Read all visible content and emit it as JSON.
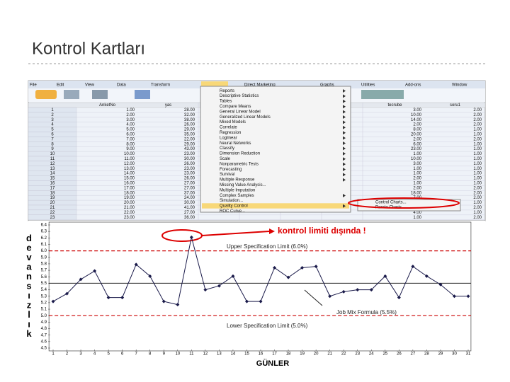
{
  "slide_title": "Kontrol Kartları",
  "spss": {
    "menu": [
      "File",
      "Edit",
      "View",
      "Data",
      "Transform",
      "Analyze",
      "Direct Marketing",
      "Graphs",
      "Utilities",
      "Add-ons",
      "Window"
    ],
    "table": {
      "columns": [
        "AnketNo",
        "yas",
        "tecrube",
        "soru1"
      ],
      "rows": [
        [
          "1",
          "1.00",
          "28.00",
          "3.00",
          "2.00"
        ],
        [
          "2",
          "2.00",
          "32.00",
          "10.00",
          "2.00"
        ],
        [
          "3",
          "3.00",
          "38.00",
          "14.00",
          "2.00"
        ],
        [
          "4",
          "4.00",
          "26.00",
          "2.00",
          "2.00"
        ],
        [
          "5",
          "5.00",
          "29.00",
          "8.00",
          "1.00"
        ],
        [
          "6",
          "6.00",
          "35.00",
          "20.00",
          "1.00"
        ],
        [
          "7",
          "7.00",
          "22.00",
          "2.00",
          "2.00"
        ],
        [
          "8",
          "8.00",
          "29.00",
          "6.00",
          "1.00"
        ],
        [
          "9",
          "9.00",
          "43.00",
          "23.00",
          "1.00"
        ],
        [
          "10",
          "10.00",
          "23.00",
          "1.00",
          "1.00"
        ],
        [
          "11",
          "11.00",
          "30.00",
          "10.00",
          "1.00"
        ],
        [
          "12",
          "12.00",
          "26.00",
          "3.00",
          "1.00"
        ],
        [
          "13",
          "13.00",
          "23.00",
          "1.00",
          "1.00"
        ],
        [
          "14",
          "14.00",
          "23.00",
          "1.00",
          "1.00"
        ],
        [
          "15",
          "15.00",
          "26.00",
          "2.00",
          "1.00"
        ],
        [
          "16",
          "16.00",
          "27.00",
          "1.00",
          "1.00"
        ],
        [
          "17",
          "17.00",
          "27.00",
          "2.00",
          "2.00"
        ],
        [
          "18",
          "18.00",
          "37.00",
          "18.00",
          "2.00"
        ],
        [
          "19",
          "19.00",
          "24.00",
          "7.00",
          "2.00"
        ],
        [
          "20",
          "20.00",
          "30.00",
          "3.00",
          "1.00"
        ],
        [
          "21",
          "21.00",
          "41.00",
          "2.00",
          "2.00"
        ],
        [
          "22",
          "22.00",
          "27.00",
          "4.00",
          "1.00"
        ],
        [
          "23",
          "23.00",
          "36.00",
          "1.00",
          "2.00"
        ]
      ]
    },
    "analyze_menu": [
      "Reports",
      "Descriptive Statistics",
      "Tables",
      "Compare Means",
      "General Linear Model",
      "Generalized Linear Models",
      "Mixed Models",
      "Correlate",
      "Regression",
      "Loglinear",
      "Neural Networks",
      "Classify",
      "Dimension Reduction",
      "Scale",
      "Nonparametric Tests",
      "Forecasting",
      "Survival",
      "Multiple Response",
      "Missing Value Analysis...",
      "Multiple Imputation",
      "Complex Samples",
      "Simulation...",
      "Quality Control",
      "ROC Curve..."
    ],
    "submenu": [
      "Control Charts...",
      "Pareto Charts..."
    ]
  },
  "chart_data": {
    "type": "line",
    "y_label": "devansızlık",
    "x_label": "GÜNLER",
    "annotations": [
      "kontrol limiti dışında !",
      "Upper Specification Limit (6.0%)",
      "Job Mix Formula (5.5%)",
      "Lower Specification Limit (5.0%)"
    ],
    "upper_limit": 6,
    "center": 5.5,
    "lower_limit": 5,
    "x": [
      1,
      2,
      3,
      4,
      5,
      6,
      7,
      8,
      9,
      10,
      11,
      12,
      13,
      14,
      15,
      16,
      17,
      18,
      19,
      20,
      21,
      22,
      23,
      24,
      25,
      26,
      27,
      28,
      29,
      30,
      31
    ],
    "values": [
      5.22,
      5.34,
      5.56,
      5.69,
      5.28,
      5.28,
      5.79,
      5.61,
      5.22,
      5.17,
      6.21,
      5.4,
      5.46,
      5.61,
      5.22,
      5.22,
      5.74,
      5.59,
      5.74,
      5.76,
      5.3,
      5.37,
      5.4,
      5.4,
      5.61,
      5.28,
      5.76,
      5.61,
      5.48,
      5.3,
      5.3
    ],
    "color": "#1a1a4a",
    "xlim": [
      0.7,
      31.2
    ],
    "ylim": [
      4.5,
      6.4
    ],
    "xticks": [
      1,
      2,
      3,
      4,
      5,
      6,
      7,
      8,
      9,
      10,
      11,
      12,
      13,
      14,
      15,
      16,
      17,
      18,
      19,
      20,
      21,
      22,
      23,
      24,
      25,
      26,
      27,
      28,
      29,
      30,
      31
    ],
    "yticks": [
      4.5,
      4.6,
      4.7,
      4.8,
      4.9,
      {
        "value": 5,
        "label": "5.0"
      },
      5.1,
      5.2,
      5.3,
      5.4,
      5.5,
      5.6,
      5.7,
      5.8,
      5.9,
      {
        "value": 6,
        "label": "6.0"
      },
      6.1,
      6.2,
      6.3,
      6.4
    ]
  }
}
